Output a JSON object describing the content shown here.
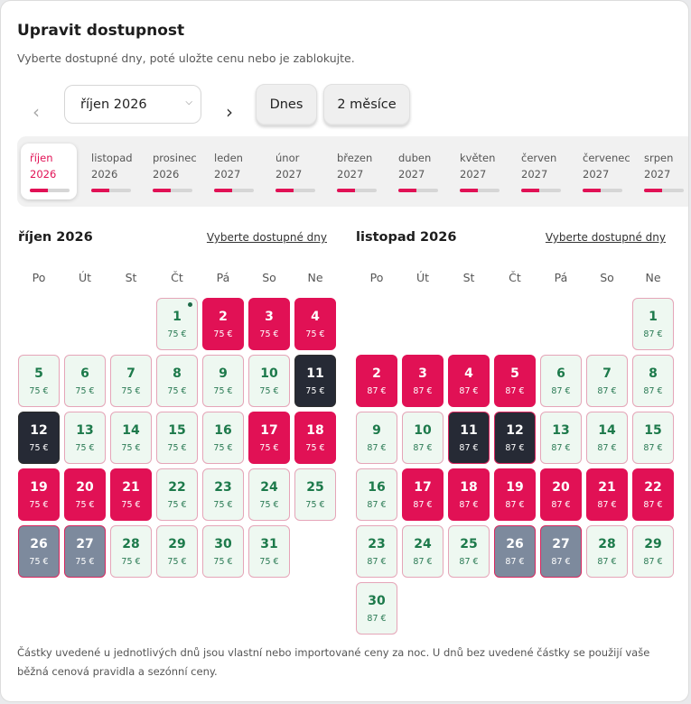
{
  "header": {
    "title": "Upravit dostupnost",
    "subtitle": "Vyberte dostupné dny, poté uložte cenu nebo je zablokujte."
  },
  "toolbar": {
    "prev_glyph": "‹",
    "next_glyph": "›",
    "month_select_value": "říjen 2026",
    "today_label": "Dnes",
    "two_months_label": "2 měsíce"
  },
  "month_strip": [
    {
      "name": "říjen",
      "year": "2026",
      "active": true,
      "progress": 0.45
    },
    {
      "name": "listopad",
      "year": "2026",
      "active": false,
      "progress": 0.45
    },
    {
      "name": "prosinec",
      "year": "2026",
      "active": false,
      "progress": 0.45
    },
    {
      "name": "leden",
      "year": "2027",
      "active": false,
      "progress": 0.45
    },
    {
      "name": "únor",
      "year": "2027",
      "active": false,
      "progress": 0.45
    },
    {
      "name": "březen",
      "year": "2027",
      "active": false,
      "progress": 0.45
    },
    {
      "name": "duben",
      "year": "2027",
      "active": false,
      "progress": 0.45
    },
    {
      "name": "květen",
      "year": "2027",
      "active": false,
      "progress": 0.45
    },
    {
      "name": "červen",
      "year": "2027",
      "active": false,
      "progress": 0.45
    },
    {
      "name": "červenec",
      "year": "2027",
      "active": false,
      "progress": 0.45
    },
    {
      "name": "srpen",
      "year": "2027",
      "active": false,
      "progress": 0.45
    }
  ],
  "weekdays": [
    "Po",
    "Út",
    "St",
    "Čt",
    "Pá",
    "So",
    "Ne"
  ],
  "calendars": [
    {
      "title": "říjen 2026",
      "link": "Vyberte dostupné dny",
      "first_weekday": 3,
      "days": [
        {
          "d": "1",
          "p": "75 €",
          "s": "avail",
          "dot": true
        },
        {
          "d": "2",
          "p": "75 €",
          "s": "blocked"
        },
        {
          "d": "3",
          "p": "75 €",
          "s": "blocked"
        },
        {
          "d": "4",
          "p": "75 €",
          "s": "blocked"
        },
        {
          "d": "5",
          "p": "75 €",
          "s": "avail"
        },
        {
          "d": "6",
          "p": "75 €",
          "s": "avail"
        },
        {
          "d": "7",
          "p": "75 €",
          "s": "avail"
        },
        {
          "d": "8",
          "p": "75 €",
          "s": "avail"
        },
        {
          "d": "9",
          "p": "75 €",
          "s": "avail"
        },
        {
          "d": "10",
          "p": "75 €",
          "s": "avail"
        },
        {
          "d": "11",
          "p": "75 €",
          "s": "dark",
          "sel": true
        },
        {
          "d": "12",
          "p": "75 €",
          "s": "dark",
          "sel": true
        },
        {
          "d": "13",
          "p": "75 €",
          "s": "avail"
        },
        {
          "d": "14",
          "p": "75 €",
          "s": "avail"
        },
        {
          "d": "15",
          "p": "75 €",
          "s": "avail"
        },
        {
          "d": "16",
          "p": "75 €",
          "s": "avail"
        },
        {
          "d": "17",
          "p": "75 €",
          "s": "blocked"
        },
        {
          "d": "18",
          "p": "75 €",
          "s": "blocked"
        },
        {
          "d": "19",
          "p": "75 €",
          "s": "blocked"
        },
        {
          "d": "20",
          "p": "75 €",
          "s": "blocked"
        },
        {
          "d": "21",
          "p": "75 €",
          "s": "blocked"
        },
        {
          "d": "22",
          "p": "75 €",
          "s": "avail"
        },
        {
          "d": "23",
          "p": "75 €",
          "s": "avail"
        },
        {
          "d": "24",
          "p": "75 €",
          "s": "avail"
        },
        {
          "d": "25",
          "p": "75 €",
          "s": "avail"
        },
        {
          "d": "26",
          "p": "75 €",
          "s": "gray"
        },
        {
          "d": "27",
          "p": "75 €",
          "s": "gray"
        },
        {
          "d": "28",
          "p": "75 €",
          "s": "avail"
        },
        {
          "d": "29",
          "p": "75 €",
          "s": "avail"
        },
        {
          "d": "30",
          "p": "75 €",
          "s": "avail"
        },
        {
          "d": "31",
          "p": "75 €",
          "s": "avail"
        }
      ]
    },
    {
      "title": "listopad 2026",
      "link": "Vyberte dostupné dny",
      "first_weekday": 6,
      "days": [
        {
          "d": "1",
          "p": "87 €",
          "s": "avail"
        },
        {
          "d": "2",
          "p": "87 €",
          "s": "blocked"
        },
        {
          "d": "3",
          "p": "87 €",
          "s": "blocked"
        },
        {
          "d": "4",
          "p": "87 €",
          "s": "blocked"
        },
        {
          "d": "5",
          "p": "87 €",
          "s": "blocked"
        },
        {
          "d": "6",
          "p": "87 €",
          "s": "avail"
        },
        {
          "d": "7",
          "p": "87 €",
          "s": "avail"
        },
        {
          "d": "8",
          "p": "87 €",
          "s": "avail"
        },
        {
          "d": "9",
          "p": "87 €",
          "s": "avail"
        },
        {
          "d": "10",
          "p": "87 €",
          "s": "avail"
        },
        {
          "d": "11",
          "p": "87 €",
          "s": "dark"
        },
        {
          "d": "12",
          "p": "87 €",
          "s": "dark"
        },
        {
          "d": "13",
          "p": "87 €",
          "s": "avail"
        },
        {
          "d": "14",
          "p": "87 €",
          "s": "avail"
        },
        {
          "d": "15",
          "p": "87 €",
          "s": "avail"
        },
        {
          "d": "16",
          "p": "87 €",
          "s": "avail"
        },
        {
          "d": "17",
          "p": "87 €",
          "s": "blocked"
        },
        {
          "d": "18",
          "p": "87 €",
          "s": "blocked"
        },
        {
          "d": "19",
          "p": "87 €",
          "s": "blocked"
        },
        {
          "d": "20",
          "p": "87 €",
          "s": "blocked"
        },
        {
          "d": "21",
          "p": "87 €",
          "s": "blocked"
        },
        {
          "d": "22",
          "p": "87 €",
          "s": "blocked"
        },
        {
          "d": "23",
          "p": "87 €",
          "s": "avail"
        },
        {
          "d": "24",
          "p": "87 €",
          "s": "avail"
        },
        {
          "d": "25",
          "p": "87 €",
          "s": "avail"
        },
        {
          "d": "26",
          "p": "87 €",
          "s": "gray"
        },
        {
          "d": "27",
          "p": "87 €",
          "s": "gray"
        },
        {
          "d": "28",
          "p": "87 €",
          "s": "avail"
        },
        {
          "d": "29",
          "p": "87 €",
          "s": "avail"
        },
        {
          "d": "30",
          "p": "87 €",
          "s": "avail"
        }
      ]
    }
  ],
  "footnote": "Částky uvedené u jednotlivých dnů jsou vlastní nebo importované ceny za noc. U dnů bez uvedené částky se použijí vaše běžná cenová pravidla a sezónní ceny.",
  "colors": {
    "accent": "#e11155",
    "available_bg": "#eef8f1",
    "available_text": "#1d7a4b",
    "dark_day": "#262a35",
    "gray_day": "#7d8a9d"
  }
}
